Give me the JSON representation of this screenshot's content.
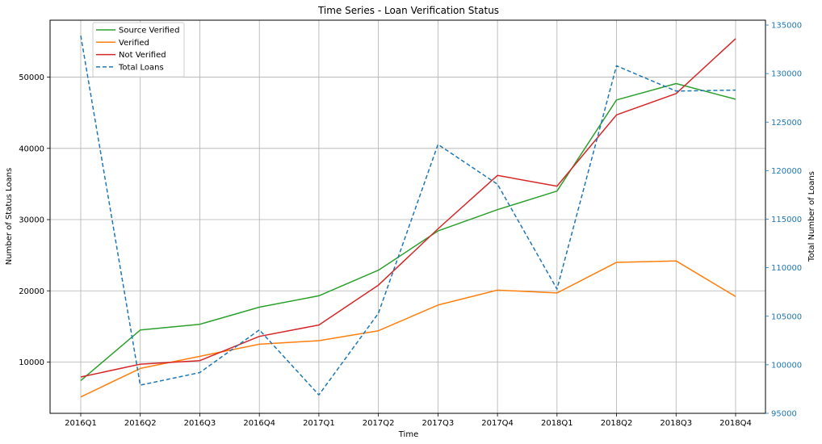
{
  "chart_data": {
    "type": "line",
    "title": "Time Series - Loan Verification Status",
    "xlabel": "Time",
    "ylabel": "Number of Status Loans",
    "y2label": "Total Number of Loans",
    "categories": [
      "2016Q1",
      "2016Q2",
      "2016Q3",
      "2016Q4",
      "2017Q1",
      "2017Q2",
      "2017Q3",
      "2017Q4",
      "2018Q1",
      "2018Q2",
      "2018Q3",
      "2018Q4"
    ],
    "ylim": [
      2800,
      58000
    ],
    "y2lim": [
      95000,
      135500
    ],
    "yticks": [
      10000,
      20000,
      30000,
      40000,
      50000
    ],
    "y2ticks": [
      95000,
      100000,
      105000,
      110000,
      115000,
      120000,
      125000,
      130000,
      135000
    ],
    "grid": true,
    "legend_position": "top-left",
    "series": [
      {
        "name": "Source Verified",
        "axis": "left",
        "style": "solid",
        "color": "#2ca02c",
        "values": [
          7400,
          14500,
          15300,
          17700,
          19300,
          22900,
          28400,
          31400,
          34000,
          46800,
          49100,
          46900
        ]
      },
      {
        "name": "Verified",
        "axis": "left",
        "style": "solid",
        "color": "#ff7f0e",
        "values": [
          5100,
          9100,
          10800,
          12500,
          13000,
          14400,
          18000,
          20100,
          19700,
          24000,
          24200,
          19200
        ]
      },
      {
        "name": "Not Verified",
        "axis": "left",
        "style": "solid",
        "color": "#d62728",
        "values": [
          7900,
          9700,
          10200,
          13600,
          15200,
          20800,
          28700,
          36200,
          34700,
          44700,
          47700,
          55400
        ]
      },
      {
        "name": "Total Loans",
        "axis": "right",
        "style": "dashed",
        "color": "#1f77b4",
        "values": [
          133900,
          97900,
          99200,
          103600,
          96900,
          105300,
          122700,
          118600,
          107800,
          130800,
          128200,
          128300
        ]
      }
    ]
  }
}
